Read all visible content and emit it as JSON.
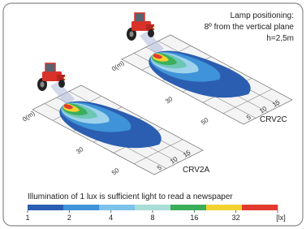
{
  "annotation": {
    "title": "Lamp positioning:",
    "angle": "8º from the vertical plane",
    "height": "h=2,5m"
  },
  "scenes": [
    {
      "label": "CRV2C",
      "axis_labels": [
        "0(m)",
        "30",
        "50",
        "5",
        "10",
        "15"
      ]
    },
    {
      "label": "CRV2A",
      "axis_labels": [
        "0(m)",
        "30",
        "50",
        "5",
        "10",
        "15"
      ]
    }
  ],
  "legend": {
    "caption": "Illumination of 1 lux is sufficient light to read a newspaper",
    "labels": [
      "1",
      "2",
      "4",
      "8",
      "16",
      "32",
      "[lx]"
    ]
  }
}
